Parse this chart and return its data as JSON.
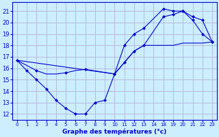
{
  "xlabel": "Graphe des températures (°c)",
  "background_color": "#cceeff",
  "grid_color": "#aaaacc",
  "line_color": "#0000cc",
  "ylim": [
    11.5,
    21.8
  ],
  "yticks": [
    12,
    13,
    14,
    15,
    16,
    17,
    18,
    19,
    20,
    21
  ],
  "xtick_labels": [
    "0",
    "1",
    "2",
    "3",
    "4",
    "5",
    "6",
    "7",
    "8",
    "9",
    "10",
    "11",
    "12",
    "13",
    "14",
    "18",
    "19",
    "20",
    "21",
    "22",
    "23"
  ],
  "series1_xi": [
    0,
    1,
    2,
    3,
    4,
    5,
    6,
    7,
    8,
    9,
    10,
    11,
    12,
    13,
    18,
    19,
    20,
    21,
    22,
    23
  ],
  "series1_y": [
    16.7,
    15.8,
    15.0,
    14.2,
    13.2,
    12.5,
    12.0,
    12.0,
    13.0,
    13.2,
    15.5,
    18.0,
    19.0,
    19.5,
    21.2,
    21.0,
    21.0,
    20.2,
    19.0,
    18.3
  ],
  "series1_has_marker": [
    1,
    1,
    1,
    1,
    1,
    1,
    1,
    1,
    1,
    1,
    1,
    1,
    1,
    1,
    1,
    1,
    1,
    1,
    1,
    1
  ],
  "series2_xi": [
    0,
    2,
    3,
    4,
    5,
    6,
    7,
    10,
    11,
    12,
    13,
    18,
    19,
    20,
    21,
    22,
    23
  ],
  "series2_y": [
    16.7,
    15.8,
    15.5,
    15.5,
    15.6,
    15.8,
    15.9,
    15.5,
    16.5,
    17.5,
    18.0,
    20.5,
    20.7,
    21.0,
    20.5,
    20.2,
    18.3
  ],
  "series2_has_marker": [
    0,
    1,
    0,
    0,
    1,
    0,
    1,
    1,
    1,
    1,
    1,
    1,
    1,
    1,
    1,
    1,
    1
  ],
  "series3_xi": [
    0,
    10,
    11,
    12,
    13,
    18,
    19,
    20,
    21,
    22,
    23
  ],
  "series3_y": [
    16.7,
    15.5,
    16.5,
    17.5,
    18.0,
    18.0,
    18.0,
    18.2,
    18.2,
    18.2,
    18.3
  ],
  "series3_has_marker": [
    0,
    0,
    0,
    0,
    0,
    0,
    0,
    0,
    0,
    0,
    0
  ],
  "label_to_pos": {
    "0": 0,
    "1": 1,
    "2": 2,
    "3": 3,
    "4": 4,
    "5": 5,
    "6": 6,
    "7": 7,
    "8": 8,
    "9": 9,
    "10": 10,
    "11": 11,
    "12": 12,
    "13": 13,
    "14": 14,
    "18": 15,
    "19": 16,
    "20": 17,
    "21": 18,
    "22": 19,
    "23": 20
  }
}
